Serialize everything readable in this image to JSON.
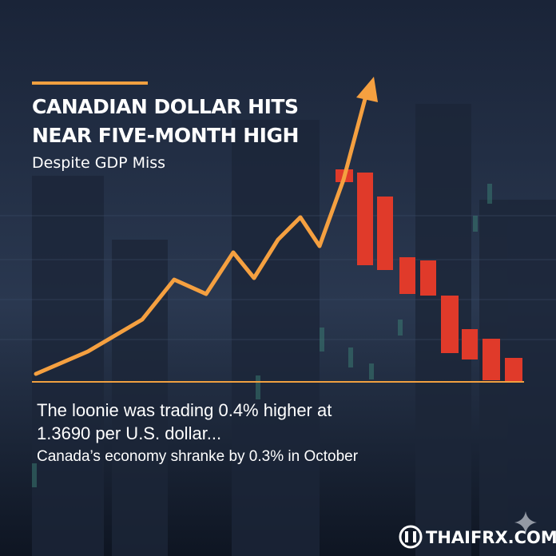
{
  "headline": {
    "lines": [
      "CANADIAN DOLLAR HITS",
      "NEAR FIVE-MONTH HIGH"
    ],
    "subtitle": "Despite GDP Miss"
  },
  "body": {
    "lines": [
      "The loonie was trading 0.4% higher at",
      "1.3690 per U.S. dollar...",
      "Canada’s economy shranke by 0.3% in October"
    ]
  },
  "brand": "THAIFRX.COM"
}
